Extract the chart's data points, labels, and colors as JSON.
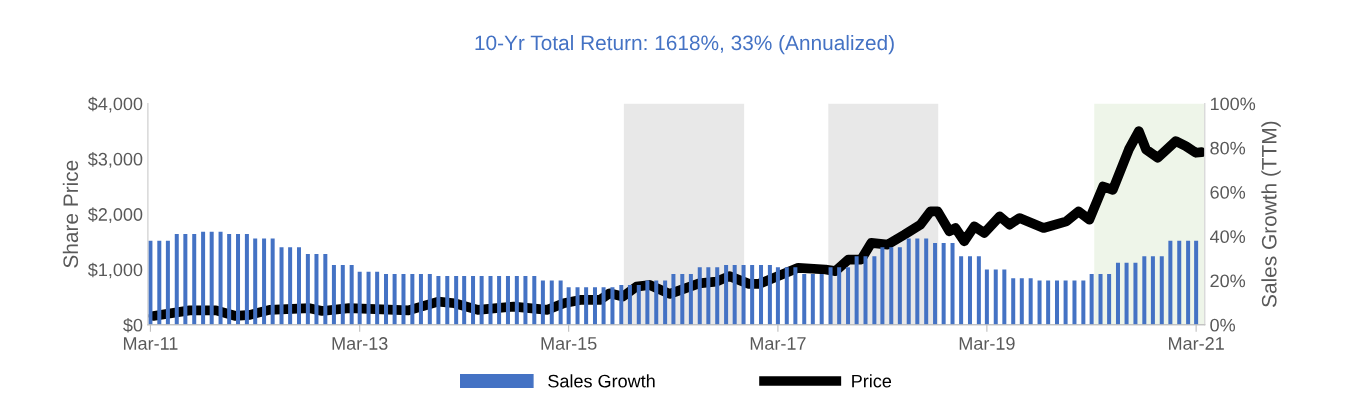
{
  "chart_data": {
    "type": "bar",
    "title": "10-Yr Total Return: 1618%, 33% (Annualized)",
    "ylabel": "Share Price",
    "y2label": "Sales Growth (TTM)",
    "x": [
      "2011-03",
      "2011-04",
      "2011-05",
      "2011-06",
      "2011-07",
      "2011-08",
      "2011-09",
      "2011-10",
      "2011-11",
      "2011-12",
      "2012-01",
      "2012-02",
      "2012-03",
      "2012-04",
      "2012-05",
      "2012-06",
      "2012-07",
      "2012-08",
      "2012-09",
      "2012-10",
      "2012-11",
      "2012-12",
      "2013-01",
      "2013-02",
      "2013-03",
      "2013-04",
      "2013-05",
      "2013-06",
      "2013-07",
      "2013-08",
      "2013-09",
      "2013-10",
      "2013-11",
      "2013-12",
      "2014-01",
      "2014-02",
      "2014-03",
      "2014-04",
      "2014-05",
      "2014-06",
      "2014-07",
      "2014-08",
      "2014-09",
      "2014-10",
      "2014-11",
      "2014-12",
      "2015-01",
      "2015-02",
      "2015-03",
      "2015-04",
      "2015-05",
      "2015-06",
      "2015-07",
      "2015-08",
      "2015-09",
      "2015-10",
      "2015-11",
      "2015-12",
      "2016-01",
      "2016-02",
      "2016-03",
      "2016-04",
      "2016-05",
      "2016-06",
      "2016-07",
      "2016-08",
      "2016-09",
      "2016-10",
      "2016-11",
      "2016-12",
      "2017-01",
      "2017-02",
      "2017-03",
      "2017-04",
      "2017-05",
      "2017-06",
      "2017-07",
      "2017-08",
      "2017-09",
      "2017-10",
      "2017-11",
      "2017-12",
      "2018-01",
      "2018-02",
      "2018-03",
      "2018-04",
      "2018-05",
      "2018-06",
      "2018-07",
      "2018-08",
      "2018-09",
      "2018-10",
      "2018-11",
      "2018-12",
      "2019-01",
      "2019-02",
      "2019-03",
      "2019-04",
      "2019-05",
      "2019-06",
      "2019-07",
      "2019-08",
      "2019-09",
      "2019-10",
      "2019-11",
      "2019-12",
      "2020-01",
      "2020-02",
      "2020-03",
      "2020-04",
      "2020-05",
      "2020-06",
      "2020-07",
      "2020-08",
      "2020-09",
      "2020-10",
      "2020-11",
      "2020-12",
      "2021-01",
      "2021-02",
      "2021-03"
    ],
    "series": [
      {
        "name": "Sales Growth",
        "axis": "y2",
        "color": "#4472c4",
        "values": [
          38,
          38,
          38,
          41,
          41,
          41,
          42,
          42,
          42,
          41,
          41,
          41,
          39,
          39,
          39,
          35,
          35,
          35,
          32,
          32,
          32,
          27,
          27,
          27,
          24,
          24,
          24,
          23,
          23,
          23,
          23,
          23,
          23,
          22,
          22,
          22,
          22,
          22,
          22,
          22,
          22,
          22,
          22,
          22,
          22,
          20,
          20,
          20,
          17,
          17,
          17,
          17,
          17,
          17,
          18,
          18,
          18,
          20,
          20,
          20,
          23,
          23,
          23,
          26,
          26,
          26,
          27,
          27,
          27,
          27,
          27,
          27,
          26,
          26,
          26,
          23,
          23,
          23,
          26,
          26,
          26,
          31,
          31,
          31,
          35,
          35,
          35,
          39,
          39,
          39,
          37,
          37,
          37,
          31,
          31,
          31,
          25,
          25,
          25,
          21,
          21,
          21,
          20,
          20,
          20,
          20,
          20,
          20,
          23,
          23,
          23,
          28,
          28,
          28,
          31,
          31,
          31,
          38,
          38,
          38,
          38
        ]
      },
      {
        "name": "Price",
        "type": "line",
        "axis": "y",
        "color": "#000000",
        "x": [
          "2011-03-11",
          "2011-07-16",
          "2011-10-16",
          "2011-12-24",
          "2012-02-12",
          "2012-04-20",
          "2012-09-07",
          "2012-10-21",
          "2013-01-23",
          "2013-08-18",
          "2013-12-01",
          "2014-01-26",
          "2014-04-18",
          "2014-08-21",
          "2014-12-17",
          "2015-02-12",
          "2015-04-10",
          "2015-06-18",
          "2015-07-22",
          "2015-09-06",
          "2015-10-24",
          "2015-12-09",
          "2016-02-17",
          "2016-05-30",
          "2016-07-28",
          "2016-09-12",
          "2016-11-20",
          "2016-12-25",
          "2017-05-11",
          "2017-08-14",
          "2017-09-18",
          "2017-11-02",
          "2017-12-17",
          "2018-01-21",
          "2018-03-19",
          "2018-05-17",
          "2018-07-12",
          "2018-08-16",
          "2018-09-10",
          "2018-10-21",
          "2018-11-11",
          "2018-12-12",
          "2019-01-16",
          "2019-02-20",
          "2019-04-15",
          "2019-05-19",
          "2019-06-23",
          "2019-09-15",
          "2019-12-04",
          "2020-01-15",
          "2020-02-22",
          "2020-04-10",
          "2020-05-14",
          "2020-07-09",
          "2020-08-13",
          "2020-09-07",
          "2020-10-18",
          "2020-12-20",
          "2021-01-24",
          "2021-02-28",
          "2021-03-20"
        ],
        "values": [
          160,
          260,
          260,
          160,
          180,
          270,
          300,
          250,
          300,
          260,
          420,
          390,
          270,
          330,
          270,
          390,
          450,
          450,
          570,
          510,
          690,
          720,
          560,
          750,
          780,
          880,
          740,
          740,
          1030,
          1000,
          970,
          1180,
          1180,
          1480,
          1450,
          1630,
          1810,
          2050,
          2050,
          1690,
          1750,
          1510,
          1780,
          1660,
          1960,
          1810,
          1930,
          1750,
          1870,
          2050,
          1900,
          2500,
          2440,
          3170,
          3500,
          3170,
          3020,
          3320,
          3230,
          3110,
          3120
        ]
      }
    ],
    "xlim": [
      "2011-02-20",
      "2021-03-31"
    ],
    "xticks": [
      {
        "value": "2011-03",
        "label": "Mar-11"
      },
      {
        "value": "2013-03",
        "label": "Mar-13"
      },
      {
        "value": "2015-03",
        "label": "Mar-15"
      },
      {
        "value": "2017-03",
        "label": "Mar-17"
      },
      {
        "value": "2019-03",
        "label": "Mar-19"
      },
      {
        "value": "2021-03",
        "label": "Mar-21"
      }
    ],
    "ylim": [
      0,
      4000
    ],
    "yticks": [
      {
        "value": 0,
        "label": "$0"
      },
      {
        "value": 1000,
        "label": "$1,000"
      },
      {
        "value": 2000,
        "label": "$2,000"
      },
      {
        "value": 3000,
        "label": "$3,000"
      },
      {
        "value": 4000,
        "label": "$4,000"
      }
    ],
    "y2lim": [
      0,
      100
    ],
    "y2ticks": [
      {
        "value": 0,
        "label": "0%"
      },
      {
        "value": 20,
        "label": "20%"
      },
      {
        "value": 40,
        "label": "40%"
      },
      {
        "value": 60,
        "label": "60%"
      },
      {
        "value": 80,
        "label": "80%"
      },
      {
        "value": 100,
        "label": "100%"
      }
    ],
    "bands": [
      {
        "axis": "x",
        "from": "2015-09-10",
        "to": "2016-11-03",
        "color": "#d9d9d9"
      },
      {
        "axis": "x",
        "from": "2017-08-24",
        "to": "2018-09-12",
        "color": "#d9d9d9"
      },
      {
        "axis": "x",
        "from": "2020-03-10",
        "to": "2021-03-31",
        "color": "#e2efda"
      }
    ],
    "grid": false,
    "legend": "bottom"
  }
}
